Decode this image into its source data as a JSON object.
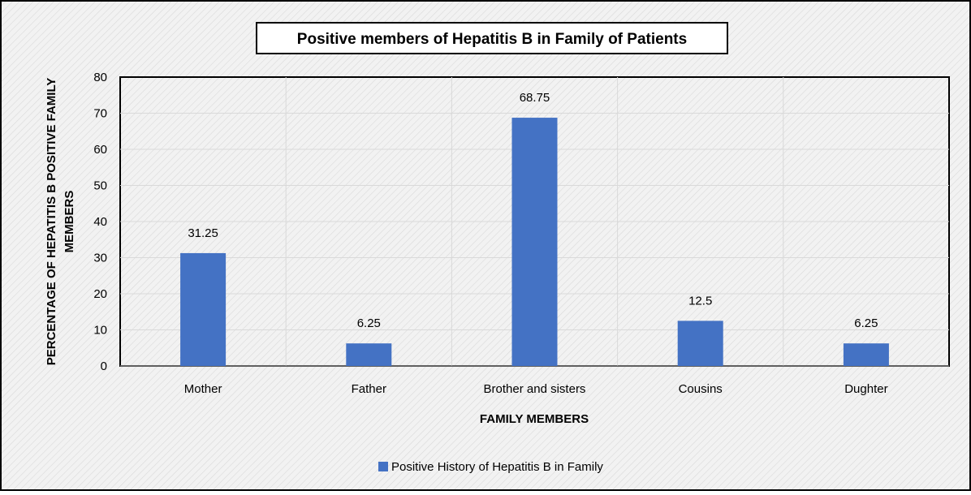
{
  "chart_data": {
    "type": "bar",
    "title": "Positive members of Hepatitis B in Family of Patients",
    "xlabel": "FAMILY MEMBERS",
    "ylabel_lines": [
      "PERCENTAGE OF HEPATITIS B POSITIVE FAMILY",
      "MEMBERS"
    ],
    "categories": [
      "Mother",
      "Father",
      "Brother and sisters",
      "Cousins",
      "Dughter"
    ],
    "series": [
      {
        "name": "Positive History of Hepatitis B in Family",
        "values": [
          31.25,
          6.25,
          68.75,
          12.5,
          6.25
        ],
        "value_labels": [
          "31.25",
          "6.25",
          "68.75",
          "12.5",
          "6.25"
        ],
        "color": "#4472C4"
      }
    ],
    "ylim": [
      0,
      80
    ],
    "yticks": [
      0,
      10,
      20,
      30,
      40,
      50,
      60,
      70,
      80
    ],
    "grid": true,
    "legend_position": "bottom"
  },
  "colors": {
    "background": "#F2F2F2",
    "hatch": "#D9D9D9",
    "gridline": "#D9D9D9",
    "frame": "#000000",
    "text": "#000000"
  }
}
